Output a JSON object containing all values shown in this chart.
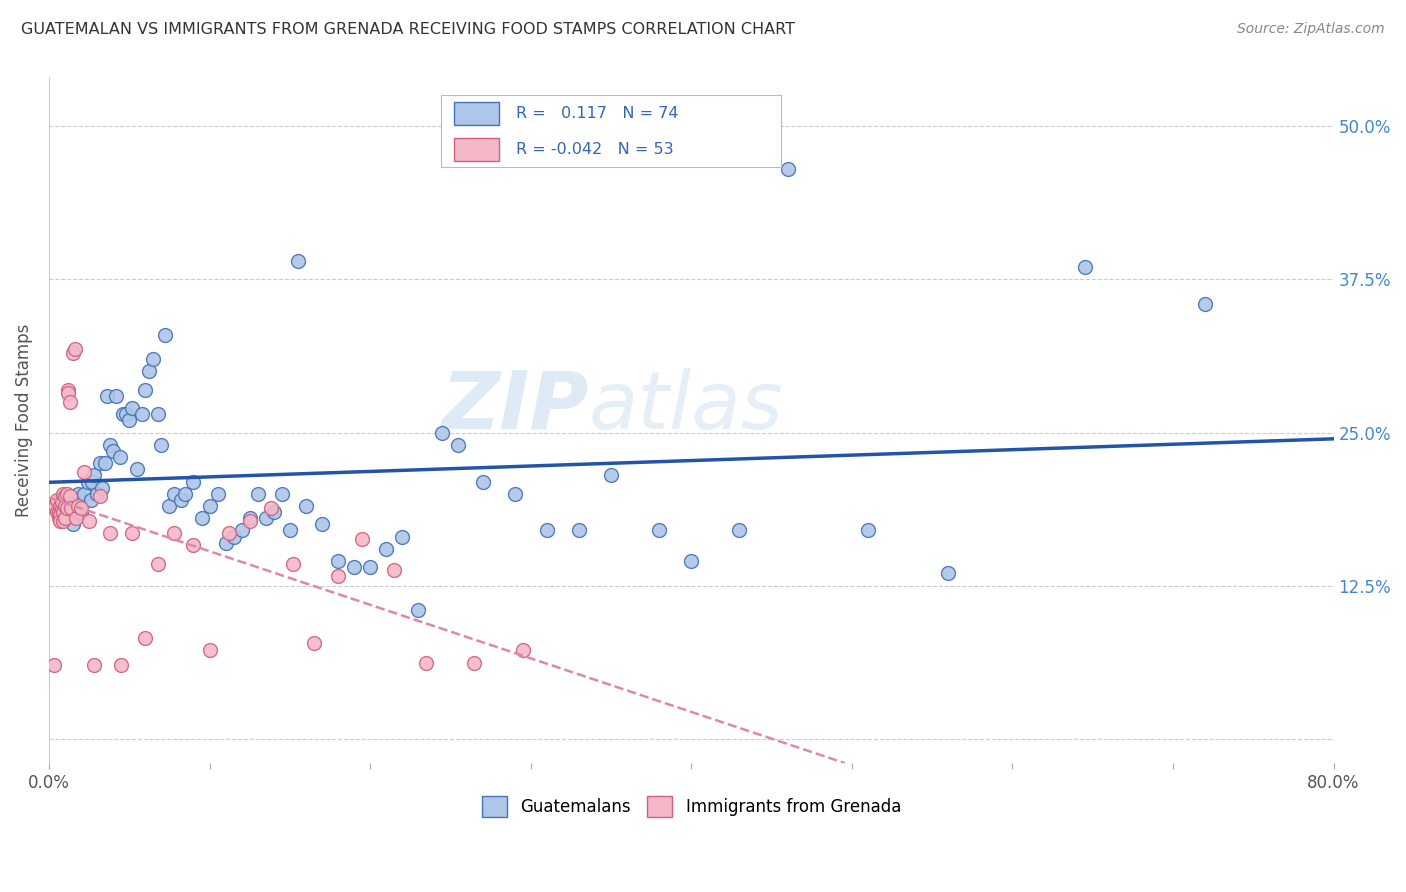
{
  "title": "GUATEMALAN VS IMMIGRANTS FROM GRENADA RECEIVING FOOD STAMPS CORRELATION CHART",
  "source": "Source: ZipAtlas.com",
  "ylabel": "Receiving Food Stamps",
  "xmin": 0.0,
  "xmax": 0.8,
  "ymin": -0.02,
  "ymax": 0.54,
  "blue_R": 0.117,
  "blue_N": 74,
  "pink_R": -0.042,
  "pink_N": 53,
  "blue_color": "#aec6e8",
  "pink_color": "#f4b8c8",
  "blue_edge_color": "#4472b8",
  "pink_edge_color": "#d06080",
  "blue_line_color": "#2255aa",
  "pink_line_color": "#dd88aa",
  "watermark": "ZIPatlas",
  "legend_label_blue": "Guatemalans",
  "legend_label_pink": "Immigrants from Grenada",
  "blue_x": [
    0.007,
    0.01,
    0.012,
    0.015,
    0.016,
    0.018,
    0.02,
    0.022,
    0.024,
    0.026,
    0.027,
    0.028,
    0.03,
    0.032,
    0.033,
    0.035,
    0.036,
    0.038,
    0.04,
    0.042,
    0.044,
    0.046,
    0.048,
    0.05,
    0.052,
    0.055,
    0.058,
    0.06,
    0.062,
    0.065,
    0.068,
    0.07,
    0.072,
    0.075,
    0.078,
    0.082,
    0.085,
    0.09,
    0.095,
    0.1,
    0.105,
    0.11,
    0.115,
    0.12,
    0.125,
    0.13,
    0.135,
    0.14,
    0.145,
    0.15,
    0.155,
    0.16,
    0.17,
    0.18,
    0.19,
    0.2,
    0.21,
    0.22,
    0.23,
    0.245,
    0.255,
    0.27,
    0.29,
    0.31,
    0.33,
    0.35,
    0.38,
    0.4,
    0.43,
    0.46,
    0.51,
    0.56,
    0.645,
    0.72
  ],
  "blue_y": [
    0.195,
    0.19,
    0.185,
    0.175,
    0.195,
    0.2,
    0.185,
    0.2,
    0.21,
    0.195,
    0.21,
    0.215,
    0.2,
    0.225,
    0.205,
    0.225,
    0.28,
    0.24,
    0.235,
    0.28,
    0.23,
    0.265,
    0.265,
    0.26,
    0.27,
    0.22,
    0.265,
    0.285,
    0.3,
    0.31,
    0.265,
    0.24,
    0.33,
    0.19,
    0.2,
    0.195,
    0.2,
    0.21,
    0.18,
    0.19,
    0.2,
    0.16,
    0.165,
    0.17,
    0.18,
    0.2,
    0.18,
    0.185,
    0.2,
    0.17,
    0.39,
    0.19,
    0.175,
    0.145,
    0.14,
    0.14,
    0.155,
    0.165,
    0.105,
    0.25,
    0.24,
    0.21,
    0.2,
    0.17,
    0.17,
    0.215,
    0.17,
    0.145,
    0.17,
    0.465,
    0.17,
    0.135,
    0.385,
    0.355
  ],
  "pink_x": [
    0.002,
    0.003,
    0.004,
    0.005,
    0.005,
    0.006,
    0.006,
    0.007,
    0.007,
    0.007,
    0.008,
    0.008,
    0.009,
    0.009,
    0.009,
    0.01,
    0.01,
    0.01,
    0.011,
    0.011,
    0.012,
    0.012,
    0.013,
    0.013,
    0.014,
    0.015,
    0.016,
    0.017,
    0.018,
    0.02,
    0.022,
    0.025,
    0.028,
    0.032,
    0.038,
    0.045,
    0.052,
    0.06,
    0.068,
    0.078,
    0.09,
    0.1,
    0.112,
    0.125,
    0.138,
    0.152,
    0.165,
    0.18,
    0.195,
    0.215,
    0.235,
    0.265,
    0.295
  ],
  "pink_y": [
    0.19,
    0.06,
    0.19,
    0.185,
    0.195,
    0.18,
    0.185,
    0.19,
    0.183,
    0.178,
    0.188,
    0.193,
    0.185,
    0.2,
    0.178,
    0.18,
    0.19,
    0.198,
    0.188,
    0.2,
    0.285,
    0.282,
    0.275,
    0.198,
    0.188,
    0.315,
    0.318,
    0.18,
    0.19,
    0.188,
    0.218,
    0.178,
    0.06,
    0.198,
    0.168,
    0.06,
    0.168,
    0.082,
    0.143,
    0.168,
    0.158,
    0.072,
    0.168,
    0.178,
    0.188,
    0.143,
    0.078,
    0.133,
    0.163,
    0.138,
    0.062,
    0.062,
    0.072
  ]
}
